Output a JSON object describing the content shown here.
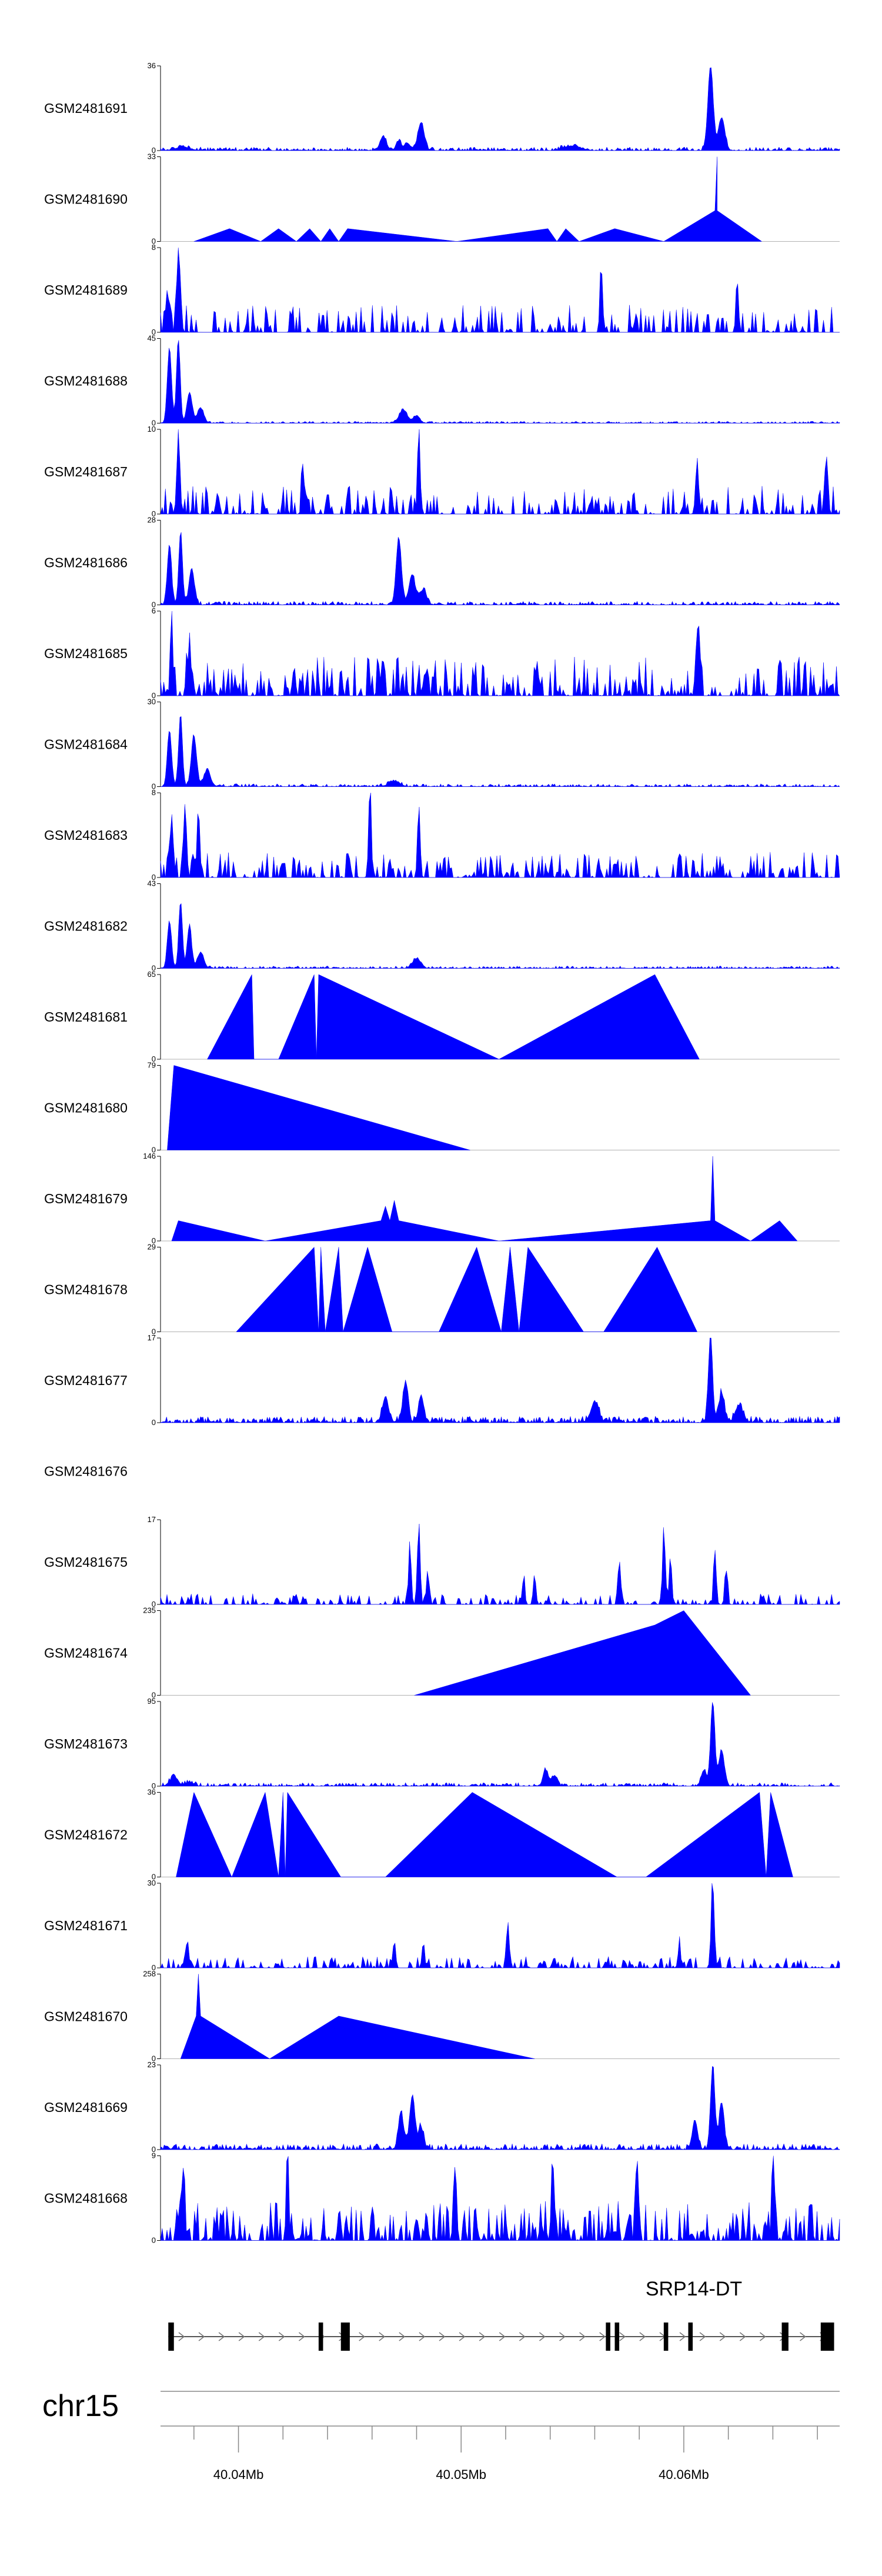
{
  "chart_data": {
    "type": "area",
    "title": "",
    "region": {
      "chromosome": "chr15",
      "start_mb": 40.0365,
      "end_mb": 40.067
    },
    "color": "#0000FF",
    "tracks": [
      {
        "id": "GSM2481691",
        "ymax": 36,
        "pattern": "dense",
        "seed": 11,
        "noise": 1.5,
        "peaks": [
          [
            40.0375,
            1.5,
            0.25
          ],
          [
            40.0465,
            6,
            0.12
          ],
          [
            40.0472,
            4,
            0.1
          ],
          [
            40.0482,
            12,
            0.12
          ],
          [
            40.0476,
            3,
            0.1
          ],
          [
            40.0612,
            36,
            0.1
          ],
          [
            40.0617,
            14,
            0.12
          ],
          [
            40.055,
            2,
            0.3
          ]
        ]
      },
      {
        "id": "GSM2481690",
        "ymax": 33,
        "pattern": "sparse",
        "points": [
          [
            40.038,
            0
          ],
          [
            40.0396,
            5
          ],
          [
            40.041,
            0
          ],
          [
            40.0418,
            5
          ],
          [
            40.0426,
            0
          ],
          [
            40.0432,
            5
          ],
          [
            40.0437,
            0
          ],
          [
            40.0441,
            5
          ],
          [
            40.0445,
            0
          ],
          [
            40.0449,
            5
          ],
          [
            40.0498,
            0
          ],
          [
            40.0539,
            5
          ],
          [
            40.0543,
            0
          ],
          [
            40.0547,
            5
          ],
          [
            40.0553,
            0
          ],
          [
            40.0569,
            5
          ],
          [
            40.0591,
            0
          ],
          [
            40.0614,
            12
          ],
          [
            40.0615,
            33
          ],
          [
            40.0615,
            12
          ],
          [
            40.0635,
            0
          ]
        ]
      },
      {
        "id": "GSM2481689",
        "ymax": 8,
        "pattern": "spiky",
        "seed": 3,
        "noise": 2.6,
        "density": 0.45,
        "peaks": [
          [
            40.0373,
            8,
            0.06
          ],
          [
            40.0368,
            4,
            0.06
          ],
          [
            40.0563,
            6,
            0.05
          ],
          [
            40.0624,
            5,
            0.05
          ]
        ]
      },
      {
        "id": "GSM2481688",
        "ymax": 45,
        "pattern": "dense",
        "seed": 19,
        "noise": 1.0,
        "peaks": [
          [
            40.0369,
            40,
            0.08
          ],
          [
            40.0373,
            45,
            0.07
          ],
          [
            40.0378,
            16,
            0.1
          ],
          [
            40.0383,
            8,
            0.12
          ],
          [
            40.0474,
            7,
            0.15
          ],
          [
            40.048,
            4,
            0.12
          ]
        ]
      },
      {
        "id": "GSM2481687",
        "ymax": 10,
        "pattern": "spiky",
        "seed": 23,
        "noise": 3.3,
        "density": 0.55,
        "peaks": [
          [
            40.0373,
            9,
            0.06
          ],
          [
            40.0481,
            10,
            0.05
          ],
          [
            40.0429,
            6,
            0.05
          ],
          [
            40.0606,
            6,
            0.06
          ],
          [
            40.0664,
            7,
            0.06
          ]
        ]
      },
      {
        "id": "GSM2481686",
        "ymax": 28,
        "pattern": "dense",
        "seed": 29,
        "noise": 1.2,
        "peaks": [
          [
            40.0369,
            20,
            0.08
          ],
          [
            40.0374,
            24,
            0.07
          ],
          [
            40.0379,
            12,
            0.1
          ],
          [
            40.0472,
            22,
            0.1
          ],
          [
            40.0478,
            10,
            0.12
          ],
          [
            40.0483,
            5,
            0.12
          ]
        ]
      },
      {
        "id": "GSM2481685",
        "ymax": 6,
        "pattern": "spiky",
        "seed": 31,
        "noise": 2.8,
        "density": 0.7,
        "peaks": [
          [
            40.037,
            5,
            0.05
          ],
          [
            40.0378,
            4.5,
            0.05
          ],
          [
            40.0606,
            4.5,
            0.06
          ]
        ]
      },
      {
        "id": "GSM2481684",
        "ymax": 30,
        "pattern": "dense",
        "seed": 37,
        "noise": 1.0,
        "peaks": [
          [
            40.0369,
            20,
            0.08
          ],
          [
            40.0374,
            26,
            0.07
          ],
          [
            40.038,
            18,
            0.1
          ],
          [
            40.0386,
            6,
            0.12
          ],
          [
            40.047,
            2,
            0.2
          ]
        ]
      },
      {
        "id": "GSM2481683",
        "ymax": 8,
        "pattern": "spiky",
        "seed": 41,
        "noise": 2.4,
        "density": 0.6,
        "peaks": [
          [
            40.037,
            6,
            0.06
          ],
          [
            40.0376,
            7,
            0.06
          ],
          [
            40.0382,
            5,
            0.06
          ],
          [
            40.0459,
            8,
            0.05
          ],
          [
            40.0481,
            7,
            0.05
          ]
        ]
      },
      {
        "id": "GSM2481682",
        "ymax": 43,
        "pattern": "dense",
        "seed": 43,
        "noise": 1.2,
        "peaks": [
          [
            40.0369,
            24,
            0.08
          ],
          [
            40.0374,
            34,
            0.07
          ],
          [
            40.0378,
            22,
            0.08
          ],
          [
            40.0383,
            8,
            0.12
          ],
          [
            40.048,
            5,
            0.15
          ]
        ]
      },
      {
        "id": "GSM2481681",
        "ymax": 65,
        "pattern": "sparse",
        "points": [
          [
            40.0386,
            0
          ],
          [
            40.0406,
            65
          ],
          [
            40.0407,
            0
          ],
          [
            40.0418,
            0
          ],
          [
            40.0434,
            65
          ],
          [
            40.0435,
            0
          ],
          [
            40.0436,
            65
          ],
          [
            40.0517,
            0
          ],
          [
            40.0587,
            65
          ],
          [
            40.0607,
            0
          ]
        ]
      },
      {
        "id": "GSM2481680",
        "ymax": 79,
        "pattern": "sparse",
        "points": [
          [
            40.0368,
            0
          ],
          [
            40.0371,
            79
          ],
          [
            40.0504,
            0
          ]
        ]
      },
      {
        "id": "GSM2481679",
        "ymax": 146,
        "pattern": "sparse",
        "points": [
          [
            40.037,
            0
          ],
          [
            40.0373,
            35
          ],
          [
            40.0412,
            0
          ],
          [
            40.0464,
            35
          ],
          [
            40.0466,
            60
          ],
          [
            40.0468,
            35
          ],
          [
            40.047,
            70
          ],
          [
            40.0472,
            35
          ],
          [
            40.0517,
            0
          ],
          [
            40.0612,
            35
          ],
          [
            40.0613,
            146
          ],
          [
            40.0614,
            35
          ],
          [
            40.063,
            0
          ],
          [
            40.0643,
            35
          ],
          [
            40.0651,
            0
          ]
        ]
      },
      {
        "id": "GSM2481678",
        "ymax": 29,
        "pattern": "sparse",
        "points": [
          [
            40.0399,
            0
          ],
          [
            40.0434,
            29
          ],
          [
            40.0436,
            0
          ],
          [
            40.0437,
            29
          ],
          [
            40.0439,
            0
          ],
          [
            40.0445,
            29
          ],
          [
            40.0447,
            0
          ],
          [
            40.0458,
            29
          ],
          [
            40.0469,
            0
          ],
          [
            40.049,
            0
          ],
          [
            40.0507,
            29
          ],
          [
            40.0518,
            0
          ],
          [
            40.0522,
            29
          ],
          [
            40.0526,
            0
          ],
          [
            40.053,
            29
          ],
          [
            40.0555,
            0
          ],
          [
            40.0564,
            0
          ],
          [
            40.0588,
            29
          ],
          [
            40.0606,
            0
          ]
        ]
      },
      {
        "id": "GSM2481677",
        "ymax": 17,
        "pattern": "dense",
        "seed": 47,
        "noise": 1.3,
        "peaks": [
          [
            40.0466,
            5,
            0.12
          ],
          [
            40.0475,
            8,
            0.1
          ],
          [
            40.0482,
            5,
            0.1
          ],
          [
            40.056,
            4,
            0.15
          ],
          [
            40.0612,
            17,
            0.08
          ],
          [
            40.0617,
            6,
            0.1
          ],
          [
            40.0625,
            3,
            0.15
          ]
        ]
      },
      {
        "id": "GSM2481676",
        "ymax": null,
        "pattern": "empty"
      },
      {
        "id": "GSM2481675",
        "ymax": 17,
        "pattern": "spiky",
        "seed": 53,
        "noise": 2.2,
        "density": 0.5,
        "peaks": [
          [
            40.0477,
            12,
            0.05
          ],
          [
            40.0481,
            17,
            0.05
          ],
          [
            40.0485,
            7,
            0.05
          ],
          [
            40.0571,
            9,
            0.05
          ],
          [
            40.0591,
            14,
            0.05
          ],
          [
            40.0594,
            10,
            0.05
          ],
          [
            40.0614,
            11,
            0.05
          ],
          [
            40.0619,
            7,
            0.05
          ],
          [
            40.0528,
            5,
            0.05
          ],
          [
            40.0533,
            6,
            0.05
          ]
        ]
      },
      {
        "id": "GSM2481674",
        "ymax": 235,
        "pattern": "sparse",
        "points": [
          [
            40.0479,
            0
          ],
          [
            40.0587,
            195
          ],
          [
            40.06,
            235
          ],
          [
            40.063,
            0
          ]
        ]
      },
      {
        "id": "GSM2481673",
        "ymax": 95,
        "pattern": "dense",
        "seed": 59,
        "noise": 4.0,
        "peaks": [
          [
            40.0371,
            10,
            0.15
          ],
          [
            40.0378,
            4,
            0.15
          ],
          [
            40.0538,
            18,
            0.1
          ],
          [
            40.0542,
            12,
            0.1
          ],
          [
            40.0613,
            95,
            0.08
          ],
          [
            40.0617,
            40,
            0.1
          ],
          [
            40.0609,
            18,
            0.1
          ]
        ]
      },
      {
        "id": "GSM2481672",
        "ymax": 36,
        "pattern": "sparse",
        "points": [
          [
            40.0372,
            0
          ],
          [
            40.038,
            36
          ],
          [
            40.0397,
            0
          ],
          [
            40.0412,
            36
          ],
          [
            40.0418,
            0
          ],
          [
            40.042,
            36
          ],
          [
            40.0421,
            0
          ],
          [
            40.0422,
            36
          ],
          [
            40.0446,
            0
          ],
          [
            40.0466,
            0
          ],
          [
            40.0505,
            36
          ],
          [
            40.057,
            0
          ],
          [
            40.0583,
            0
          ],
          [
            40.0634,
            36
          ],
          [
            40.0637,
            0
          ],
          [
            40.0639,
            36
          ],
          [
            40.0649,
            0
          ]
        ]
      },
      {
        "id": "GSM2481671",
        "ymax": 30,
        "pattern": "spiky",
        "seed": 61,
        "noise": 4.0,
        "density": 0.5,
        "peaks": [
          [
            40.0613,
            30,
            0.06
          ],
          [
            40.0521,
            14,
            0.05
          ],
          [
            40.047,
            10,
            0.05
          ],
          [
            40.0483,
            9,
            0.05
          ],
          [
            40.0377,
            10,
            0.05
          ],
          [
            40.0598,
            8,
            0.05
          ]
        ]
      },
      {
        "id": "GSM2481670",
        "ymax": 258,
        "pattern": "sparse",
        "points": [
          [
            40.0374,
            0
          ],
          [
            40.0381,
            130
          ],
          [
            40.0382,
            258
          ],
          [
            40.0383,
            130
          ],
          [
            40.0414,
            0
          ],
          [
            40.0445,
            130
          ],
          [
            40.0533,
            0
          ]
        ]
      },
      {
        "id": "GSM2481669",
        "ymax": 23,
        "pattern": "dense",
        "seed": 67,
        "noise": 1.6,
        "peaks": [
          [
            40.0473,
            10,
            0.1
          ],
          [
            40.0478,
            14,
            0.1
          ],
          [
            40.0482,
            6,
            0.1
          ],
          [
            40.0605,
            8,
            0.1
          ],
          [
            40.0613,
            23,
            0.08
          ],
          [
            40.0617,
            12,
            0.1
          ]
        ]
      },
      {
        "id": "GSM2481668",
        "ymax": 9,
        "pattern": "spiky",
        "seed": 71,
        "noise": 4.2,
        "density": 0.75,
        "peaks": [
          [
            40.0375,
            8,
            0.05
          ],
          [
            40.0422,
            8,
            0.05
          ],
          [
            40.0497,
            8,
            0.05
          ],
          [
            40.0541,
            8,
            0.05
          ],
          [
            40.0579,
            9,
            0.05
          ],
          [
            40.064,
            8,
            0.05
          ]
        ]
      }
    ],
    "gene_track": {
      "gene_name": "SRP14-DT",
      "start_mb": 40.03685,
      "end_mb": 40.06675,
      "exons": [
        [
          40.03685,
          40.0371
        ],
        [
          40.0436,
          40.0438
        ],
        [
          40.0446,
          40.045
        ],
        [
          40.0565,
          40.0567
        ],
        [
          40.0569,
          40.0571
        ],
        [
          40.0591,
          40.0593
        ],
        [
          40.0602,
          40.0604
        ],
        [
          40.0644,
          40.0647
        ],
        [
          40.06615,
          40.06675
        ]
      ]
    },
    "axis": {
      "chromosome_label": "chr15",
      "ticks": [
        40.038,
        40.04,
        40.042,
        40.044,
        40.046,
        40.048,
        40.05,
        40.052,
        40.054,
        40.056,
        40.058,
        40.06,
        40.062,
        40.064,
        40.066
      ],
      "labeled_ticks": [
        {
          "value": 40.04,
          "label": "40.04Mb"
        },
        {
          "value": 40.05,
          "label": "40.05Mb"
        },
        {
          "value": 40.06,
          "label": "40.06Mb"
        }
      ]
    }
  }
}
